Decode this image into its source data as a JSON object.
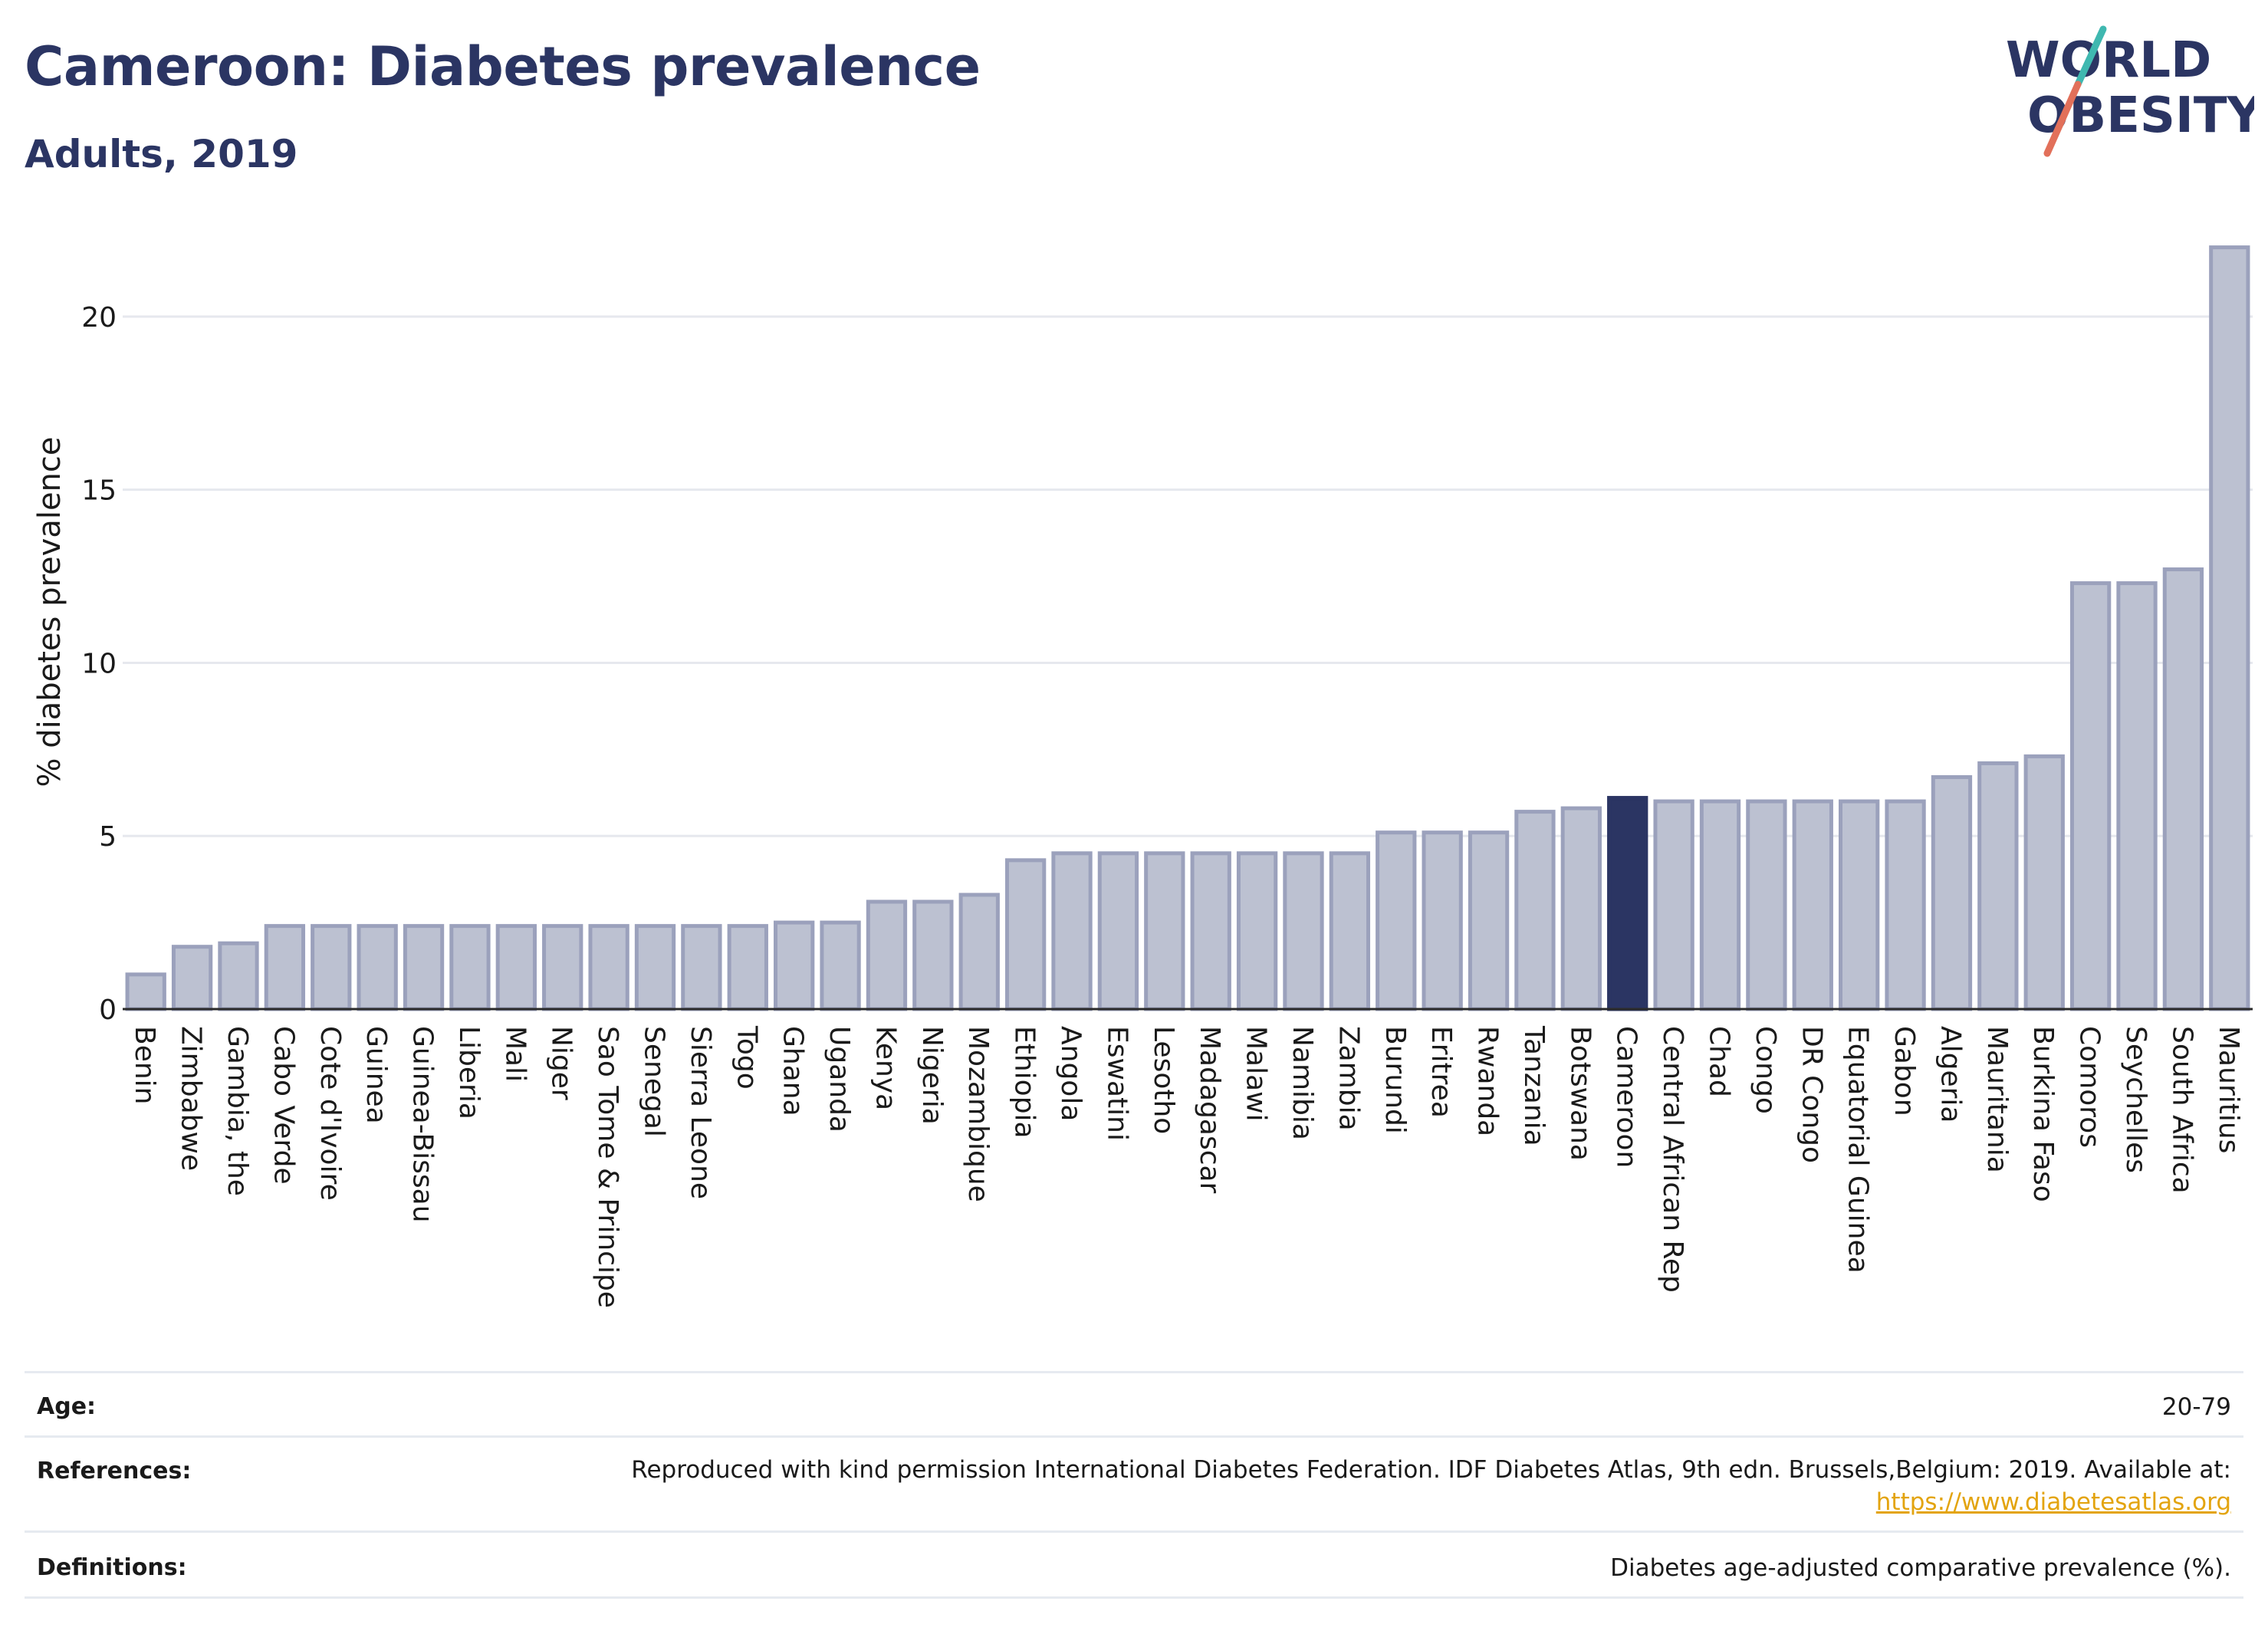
{
  "header": {
    "title": "Cameroon: Diabetes prevalence",
    "subtitle": "Adults, 2019"
  },
  "logo": {
    "line1": "WORLD",
    "line2": "OBESITY",
    "colors": {
      "text": "#2b3563",
      "slash_top": "#3fb8b0",
      "slash_bottom": "#e2705a"
    }
  },
  "chart_data": {
    "type": "bar",
    "title": "Cameroon: Diabetes prevalence",
    "subtitle": "Adults, 2019",
    "xlabel": "",
    "ylabel": "% diabetes prevalence",
    "ylim": [
      0,
      22.5
    ],
    "yticks": [
      0,
      5,
      10,
      15,
      20
    ],
    "grid": true,
    "highlight": "Cameroon",
    "colors": {
      "bar": "#bcc1d1",
      "bar_edge": "#9ba1bc",
      "highlight": "#2b3563",
      "grid": "#e6e8ee",
      "axis": "#2b2b2b"
    },
    "categories": [
      "Benin",
      "Zimbabwe",
      "Gambia, the",
      "Cabo Verde",
      "Cote d'Ivoire",
      "Guinea",
      "Guinea-Bissau",
      "Liberia",
      "Mali",
      "Niger",
      "Sao Tome & Principe",
      "Senegal",
      "Sierra Leone",
      "Togo",
      "Ghana",
      "Uganda",
      "Kenya",
      "Nigeria",
      "Mozambique",
      "Ethiopia",
      "Angola",
      "Eswatini",
      "Lesotho",
      "Madagascar",
      "Malawi",
      "Namibia",
      "Zambia",
      "Burundi",
      "Eritrea",
      "Rwanda",
      "Tanzania",
      "Botswana",
      "Cameroon",
      "Central African Rep",
      "Chad",
      "Congo",
      "DR Congo",
      "Equatorial Guinea",
      "Gabon",
      "Algeria",
      "Mauritania",
      "Burkina Faso",
      "Comoros",
      "Seychelles",
      "South Africa",
      "Mauritius"
    ],
    "values": [
      1.0,
      1.8,
      1.9,
      2.4,
      2.4,
      2.4,
      2.4,
      2.4,
      2.4,
      2.4,
      2.4,
      2.4,
      2.4,
      2.4,
      2.5,
      2.5,
      3.1,
      3.1,
      3.3,
      4.3,
      4.5,
      4.5,
      4.5,
      4.5,
      4.5,
      4.5,
      4.5,
      5.1,
      5.1,
      5.1,
      5.7,
      5.8,
      6.1,
      6.0,
      6.0,
      6.0,
      6.0,
      6.0,
      6.0,
      6.7,
      7.1,
      7.3,
      12.3,
      12.3,
      12.7,
      22.0
    ]
  },
  "info": {
    "age_label": "Age:",
    "age_value": "20-79",
    "references_label": "References:",
    "references_value": "Reproduced with kind permission International Diabetes Federation. IDF Diabetes Atlas, 9th edn. Brussels,Belgium: 2019. Available at:",
    "references_link": "https://www.diabetesatlas.org",
    "definitions_label": "Definitions:",
    "definitions_value": "Diabetes age-adjusted comparative prevalence (%)."
  }
}
